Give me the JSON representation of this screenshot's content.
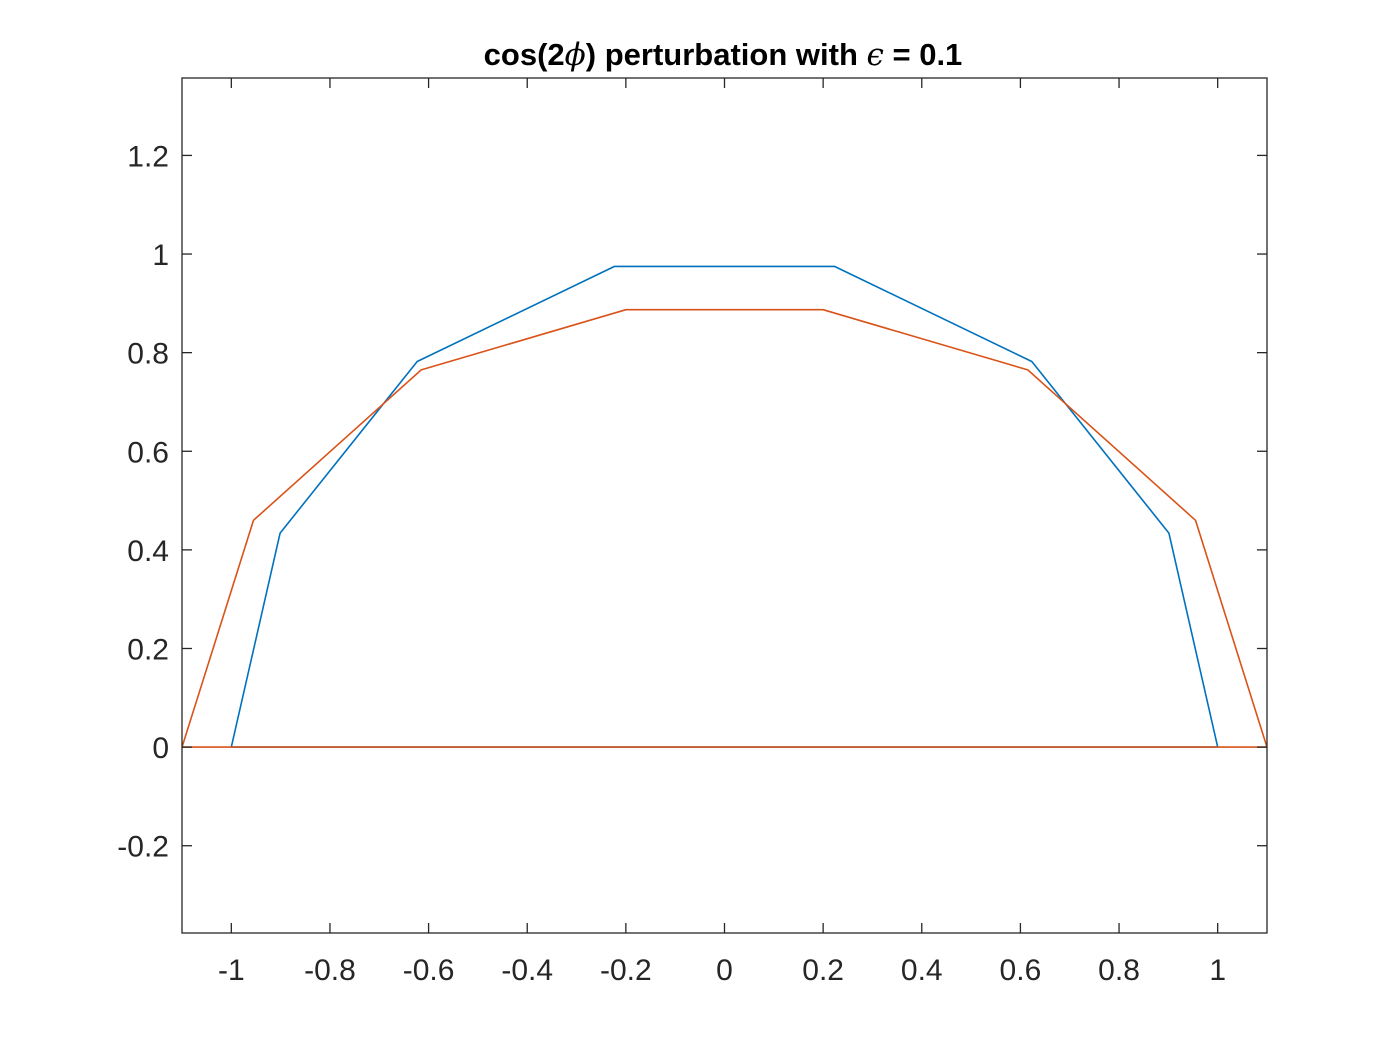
{
  "chart_data": {
    "type": "line",
    "title": {
      "prefix": "cos(2",
      "symbol": "ϕ",
      "middle": ") perturbation with ",
      "epsilon": "ϵ",
      "suffix": " = 0.1"
    },
    "xlabel": "",
    "ylabel": "",
    "xlim": [
      -1.1,
      1.1
    ],
    "ylim": [
      -0.377,
      1.357
    ],
    "xticks": [
      -1,
      -0.8,
      -0.6,
      -0.4,
      -0.2,
      0,
      0.2,
      0.4,
      0.6,
      0.8,
      1
    ],
    "xtick_labels": [
      "-1",
      "-0.8",
      "-0.6",
      "-0.4",
      "-0.2",
      "0",
      "0.2",
      "0.4",
      "0.6",
      "0.8",
      "1"
    ],
    "yticks": [
      -0.2,
      0,
      0.2,
      0.4,
      0.6,
      0.8,
      1,
      1.2
    ],
    "ytick_labels": [
      "-0.2",
      "0",
      "0.2",
      "0.4",
      "0.6",
      "0.8",
      "1",
      "1.2"
    ],
    "grid": false,
    "legend": "none",
    "series": [
      {
        "color": "#0072BD",
        "x": [
          -1.0,
          -0.901,
          -0.623,
          -0.223,
          0.223,
          0.623,
          0.901,
          1.0,
          -1.0
        ],
        "y": [
          0.0,
          0.434,
          0.782,
          0.975,
          0.975,
          0.782,
          0.434,
          0.0,
          0.0
        ]
      },
      {
        "color": "#D95319",
        "x": [
          -1.1,
          -0.955,
          -0.615,
          -0.2,
          0.2,
          0.615,
          0.955,
          1.1,
          -1.1
        ],
        "y": [
          0.0,
          0.46,
          0.765,
          0.887,
          0.887,
          0.765,
          0.46,
          0.0,
          0.0
        ]
      }
    ]
  }
}
